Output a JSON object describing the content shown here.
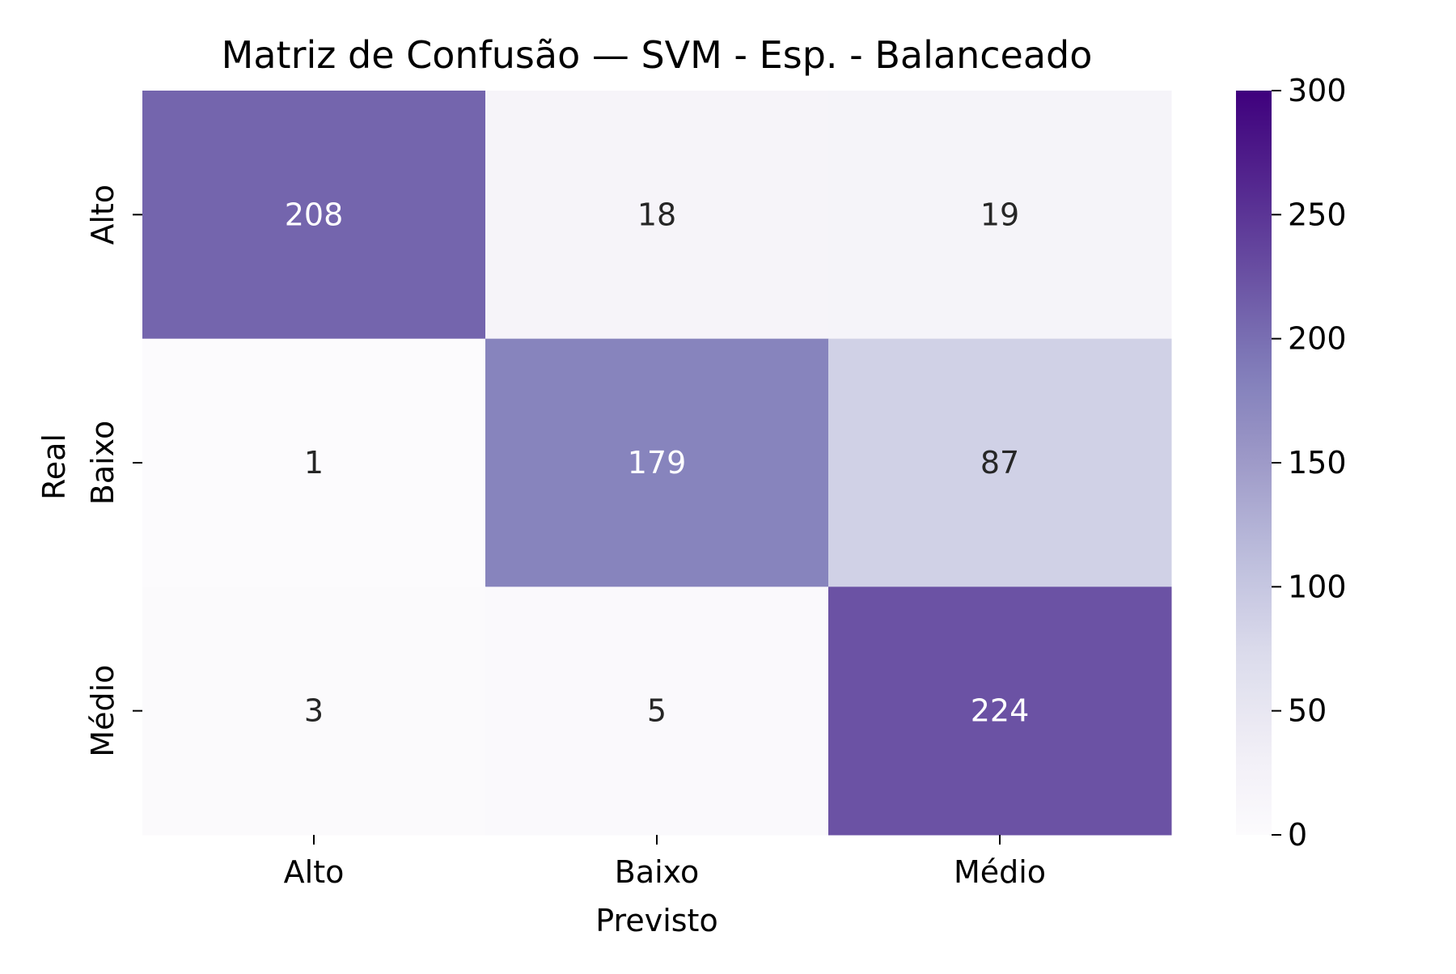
{
  "chart_data": {
    "type": "heatmap",
    "title": "Matriz de Confusão — SVM - Esp. - Balanceado",
    "xlabel": "Previsto",
    "ylabel": "Real",
    "x_categories": [
      "Alto",
      "Baixo",
      "Médio"
    ],
    "y_categories": [
      "Alto",
      "Baixo",
      "Médio"
    ],
    "values": [
      [
        208,
        18,
        19
      ],
      [
        1,
        179,
        87
      ],
      [
        3,
        5,
        224
      ]
    ],
    "colorbar": {
      "min": 0,
      "max": 300,
      "ticks": [
        0,
        50,
        100,
        150,
        200,
        250,
        300
      ],
      "colormap": "Purples",
      "low_color": "#fcfbfd",
      "high_color": "#3f007d"
    },
    "grid": false,
    "text_color_light": "#ffffff",
    "text_color_dark": "#262626"
  }
}
